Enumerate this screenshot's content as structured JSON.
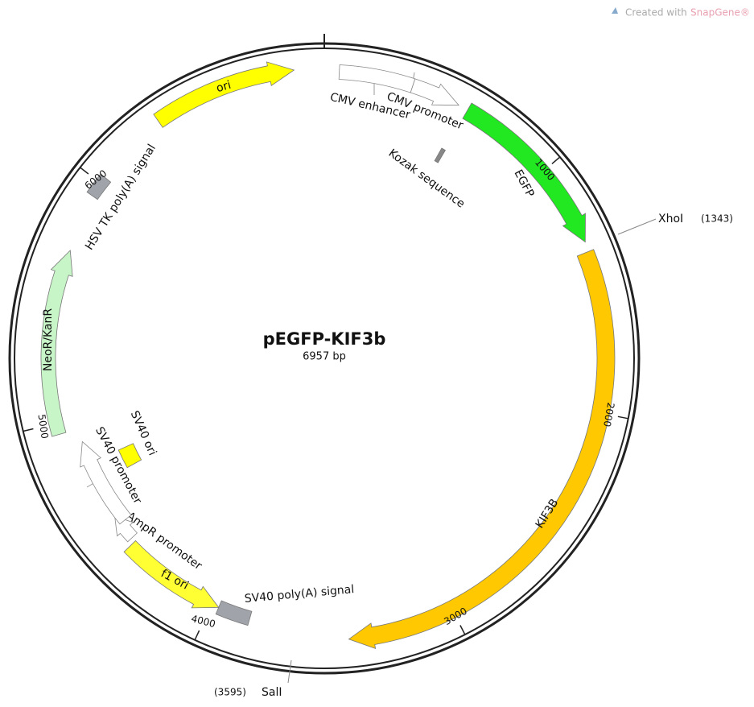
{
  "watermark": {
    "prefix": "Created with",
    "brand": "SnapGene®"
  },
  "plasmid": {
    "name": "pEGFP-KIF3b",
    "length": "6957 bp"
  },
  "features": [
    "ori",
    "CMV enhancer",
    "CMV promoter",
    "Kozak sequence",
    "EGFP",
    "KIF3B",
    "SV40 poly(A) signal",
    "f1 ori",
    "AmpR promoter",
    "SV40 promoter",
    "SV40 ori",
    "NeoR/KanR",
    "HSV TK poly(A) signal"
  ],
  "sites": [
    {
      "name": "XhoI",
      "position": "(1343)"
    },
    {
      "name": "SalI",
      "position": "(3595)"
    }
  ],
  "ruler": [
    "1000",
    "2000",
    "3000",
    "4000",
    "5000",
    "6000"
  ]
}
